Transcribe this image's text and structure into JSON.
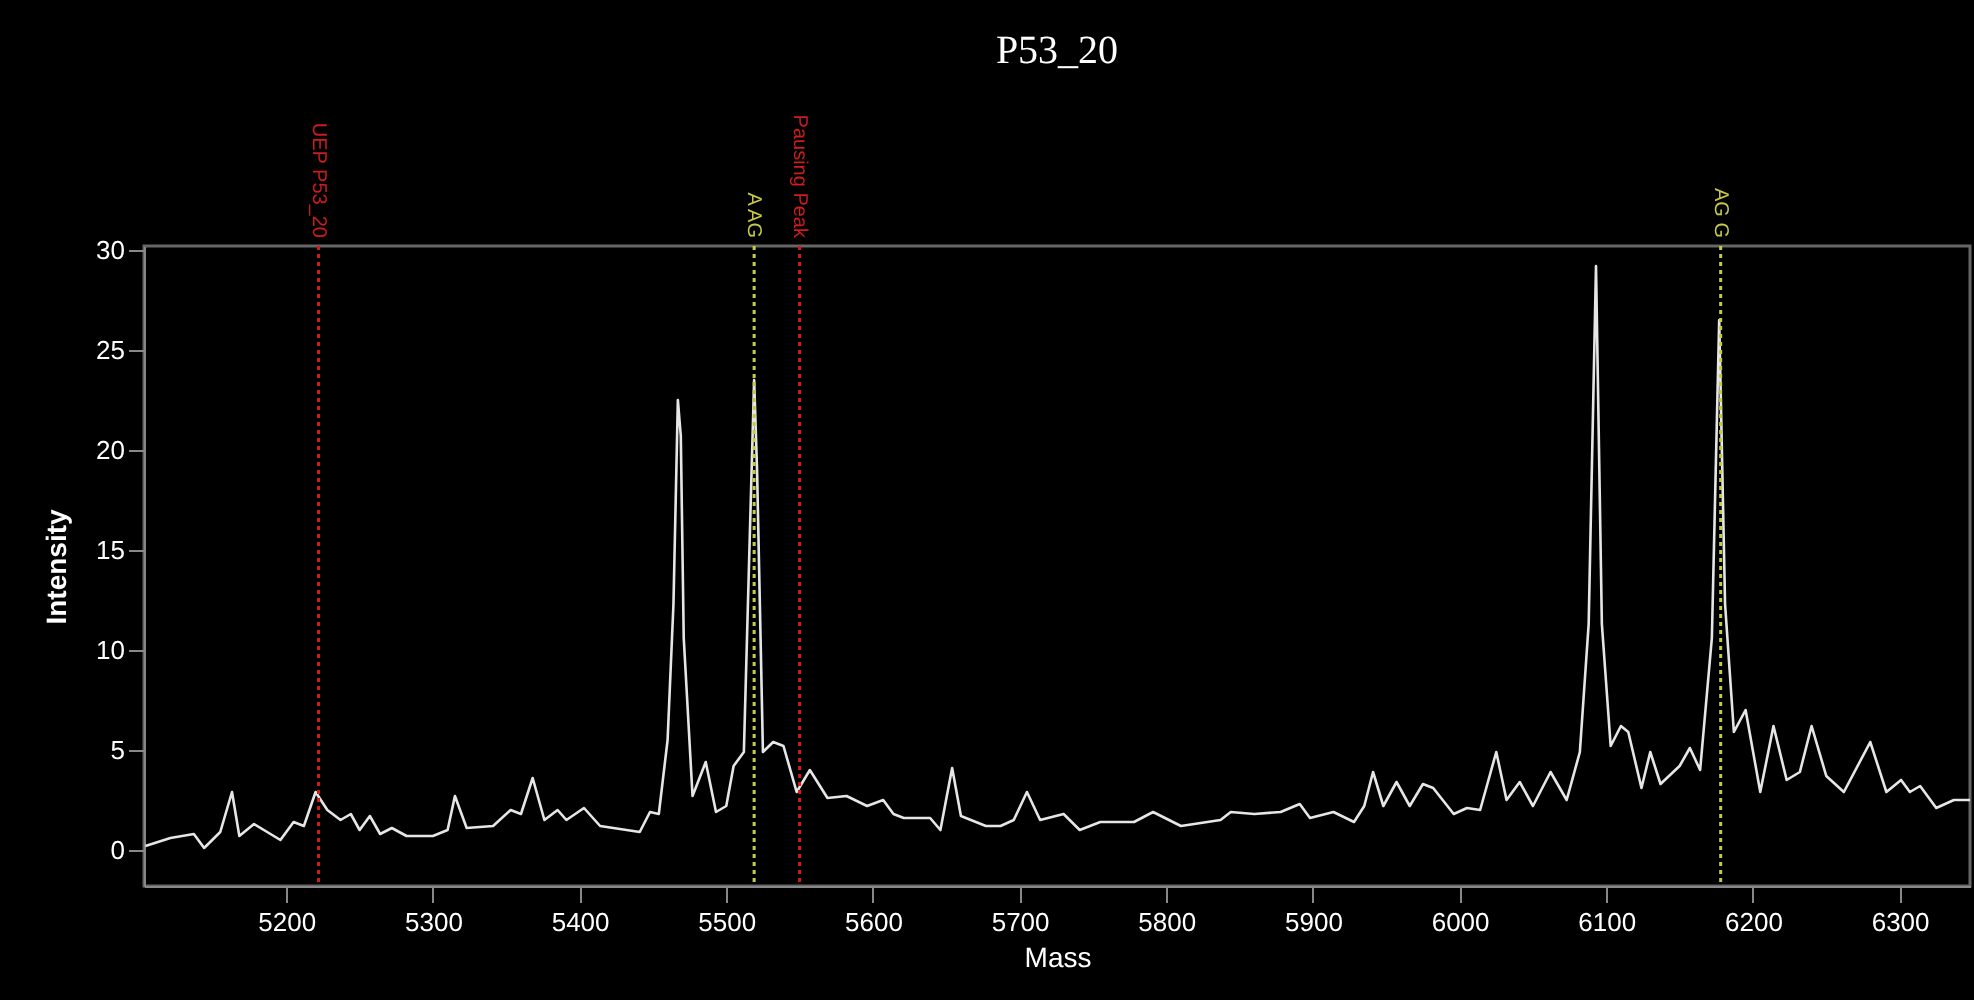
{
  "chart_data": {
    "type": "line",
    "title": "P53_20",
    "xlabel": "Mass",
    "ylabel": "Intensity",
    "xlim": [
      5103,
      6348
    ],
    "xticks": [
      5200,
      5300,
      5400,
      5500,
      5600,
      5700,
      5800,
      5900,
      6000,
      6100,
      6200,
      6300
    ],
    "ylim": [
      -1.8,
      30.2
    ],
    "yticks": [
      0,
      5,
      10,
      15,
      20,
      25,
      30
    ],
    "grid": false,
    "marker": "none",
    "line_style": "solid",
    "series": [
      {
        "color": "#e6e6e6",
        "x": [
          5104,
          5121,
          5137,
          5144,
          5155,
          5163,
          5168,
          5178,
          5196,
          5205,
          5212,
          5220,
          5228,
          5237,
          5244,
          5250,
          5257,
          5264,
          5272,
          5282,
          5300,
          5310,
          5315,
          5323,
          5341,
          5353,
          5360,
          5368,
          5376,
          5385,
          5391,
          5403,
          5414,
          5432,
          5441,
          5448,
          5454,
          5460,
          5464,
          5467,
          5469,
          5471,
          5477,
          5486,
          5493,
          5500,
          5505,
          5512,
          5516,
          5519,
          5521,
          5525,
          5532,
          5539,
          5548,
          5557,
          5569,
          5582,
          5596,
          5607,
          5614,
          5621,
          5639,
          5646,
          5654,
          5660,
          5677,
          5687,
          5696,
          5705,
          5714,
          5730,
          5741,
          5755,
          5778,
          5791,
          5810,
          5837,
          5844,
          5860,
          5878,
          5891,
          5898,
          5914,
          5928,
          5935,
          5941,
          5948,
          5957,
          5966,
          5975,
          5982,
          5996,
          6005,
          6014,
          6025,
          6032,
          6041,
          6050,
          6062,
          6073,
          6082,
          6088,
          6093,
          6097,
          6103,
          6110,
          6115,
          6124,
          6130,
          6137,
          6150,
          6157,
          6164,
          6172,
          6177,
          6181,
          6187,
          6195,
          6205,
          6214,
          6223,
          6232,
          6240,
          6250,
          6262,
          6280,
          6291,
          6301,
          6307,
          6314,
          6325,
          6337,
          6348
        ],
        "values": [
          0.2,
          0.6,
          0.8,
          0.1,
          0.9,
          2.9,
          0.7,
          1.3,
          0.5,
          1.4,
          1.2,
          2.9,
          2.0,
          1.5,
          1.8,
          1.0,
          1.7,
          0.8,
          1.1,
          0.7,
          0.7,
          1.0,
          2.7,
          1.1,
          1.2,
          2.0,
          1.8,
          3.6,
          1.5,
          2.0,
          1.5,
          2.1,
          1.2,
          1.0,
          0.9,
          1.9,
          1.8,
          5.5,
          12.3,
          22.5,
          20.7,
          10.6,
          2.7,
          4.4,
          1.9,
          2.2,
          4.2,
          4.9,
          15.6,
          23.5,
          19.0,
          4.9,
          5.4,
          5.2,
          2.9,
          4.0,
          2.6,
          2.7,
          2.2,
          2.5,
          1.8,
          1.6,
          1.6,
          1.0,
          4.1,
          1.7,
          1.2,
          1.2,
          1.5,
          2.9,
          1.5,
          1.8,
          1.0,
          1.4,
          1.4,
          1.9,
          1.2,
          1.5,
          1.9,
          1.8,
          1.9,
          2.3,
          1.6,
          1.9,
          1.4,
          2.2,
          3.9,
          2.2,
          3.4,
          2.2,
          3.3,
          3.1,
          1.8,
          2.1,
          2.0,
          4.9,
          2.5,
          3.4,
          2.2,
          3.9,
          2.5,
          4.9,
          11.3,
          29.2,
          11.3,
          5.2,
          6.2,
          5.9,
          3.1,
          4.9,
          3.3,
          4.2,
          5.1,
          4.0,
          10.6,
          26.5,
          12.3,
          5.9,
          7.0,
          2.9,
          6.2,
          3.5,
          3.9,
          6.2,
          3.7,
          2.9,
          5.4,
          2.9,
          3.5,
          2.9,
          3.2,
          2.1,
          2.5,
          2.5
        ]
      }
    ],
    "ref_lines": [
      {
        "axis": "x",
        "value": 5222,
        "label": "UEP P53_20",
        "color": "#d01c1c",
        "line_style": "dotted"
      },
      {
        "axis": "x",
        "value": 5519,
        "label": "A AG",
        "color": "#c8c84a",
        "line_style": "dotted"
      },
      {
        "axis": "x",
        "value": 5550,
        "label": "Pausing Peak",
        "color": "#d01c1c",
        "line_style": "dotted"
      },
      {
        "axis": "x",
        "value": 6178,
        "label": "AG G",
        "color": "#c8c84a",
        "line_style": "dotted"
      }
    ]
  }
}
